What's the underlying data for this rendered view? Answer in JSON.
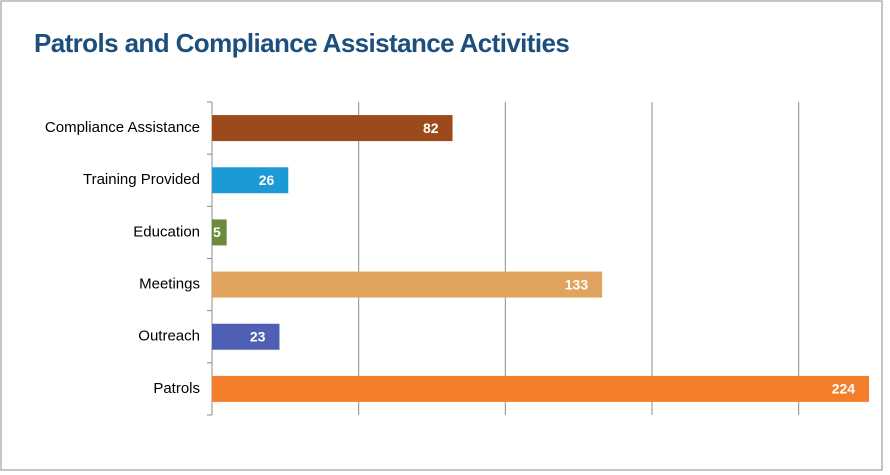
{
  "chart_data": {
    "type": "barh",
    "title": "Patrols and Compliance Assistance Activities",
    "categories": [
      "Compliance Assistance",
      "Training Provided",
      "Education",
      "Meetings",
      "Outreach",
      "Patrols"
    ],
    "values": [
      82,
      26,
      5,
      133,
      23,
      224
    ],
    "colors": [
      "#9c4a1c",
      "#1b9ad6",
      "#6b8a3c",
      "#e0a45f",
      "#4f5fb3",
      "#f47f2b"
    ],
    "xlim": [
      0,
      225
    ],
    "xticks": [
      0,
      50,
      100,
      150,
      200
    ],
    "grid": true
  }
}
